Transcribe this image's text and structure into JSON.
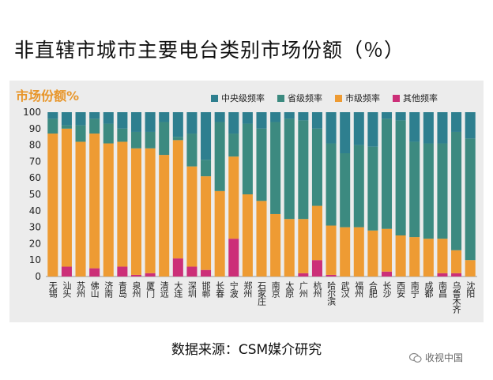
{
  "page_title": "非直辖市城市主要电台类别市场份额（％）",
  "source_text": "数据来源：CSM媒介研究",
  "watermark_text": "收视中国",
  "colors": {
    "central": "#2e7f8f",
    "provincial": "#3c8a80",
    "city": "#ee9b33",
    "other": "#cc2f78",
    "panel": "#ececec"
  },
  "chart_data": {
    "type": "bar",
    "stacked": true,
    "title": "市场份额%",
    "xlabel": "",
    "ylabel": "",
    "ylim": [
      0,
      100
    ],
    "yticks": [
      0,
      10,
      20,
      30,
      40,
      50,
      60,
      70,
      80,
      90,
      100
    ],
    "grid": false,
    "legend_position": "top-right",
    "categories": [
      "无锡",
      "汕头",
      "苏州",
      "佛山",
      "济南",
      "青岛",
      "泉州",
      "厦门",
      "清远",
      "大连",
      "深圳",
      "邯郸",
      "长春",
      "宁波",
      "郑州",
      "石家庄",
      "南京",
      "太原",
      "广州",
      "杭州",
      "哈尔滨",
      "武汉",
      "福州",
      "合肥",
      "长沙",
      "西安",
      "南宁",
      "成都",
      "南昌",
      "乌鲁木齐",
      "沈阳"
    ],
    "series": [
      {
        "name": "其他频率",
        "key": "other",
        "values": [
          0,
          6,
          0,
          5,
          0,
          6,
          1,
          2,
          0,
          11,
          6,
          4,
          0,
          23,
          0,
          0,
          0,
          0,
          2,
          10,
          1,
          0,
          0,
          0,
          3,
          0,
          0,
          0,
          2,
          2,
          0
        ]
      },
      {
        "name": "市级频率",
        "key": "city",
        "values": [
          87,
          84,
          82,
          82,
          81,
          76,
          77,
          76,
          74,
          72,
          61,
          57,
          52,
          50,
          50,
          46,
          38,
          35,
          33,
          33,
          30,
          30,
          30,
          28,
          26,
          25,
          24,
          23,
          21,
          14,
          10
        ]
      },
      {
        "name": "省级频率",
        "key": "provincial",
        "values": [
          9,
          2,
          10,
          9,
          12,
          8,
          10,
          10,
          20,
          2,
          20,
          10,
          42,
          14,
          43,
          44,
          56,
          61,
          60,
          47,
          50,
          45,
          50,
          51,
          67,
          70,
          58,
          58,
          58,
          72,
          74
        ]
      },
      {
        "name": "中央级频率",
        "key": "central",
        "values": [
          4,
          8,
          8,
          4,
          7,
          10,
          12,
          12,
          6,
          15,
          13,
          29,
          6,
          13,
          7,
          10,
          6,
          4,
          5,
          10,
          19,
          25,
          20,
          21,
          4,
          5,
          18,
          19,
          19,
          12,
          16
        ]
      }
    ],
    "legend_order": [
      "central",
      "provincial",
      "city",
      "other"
    ]
  }
}
